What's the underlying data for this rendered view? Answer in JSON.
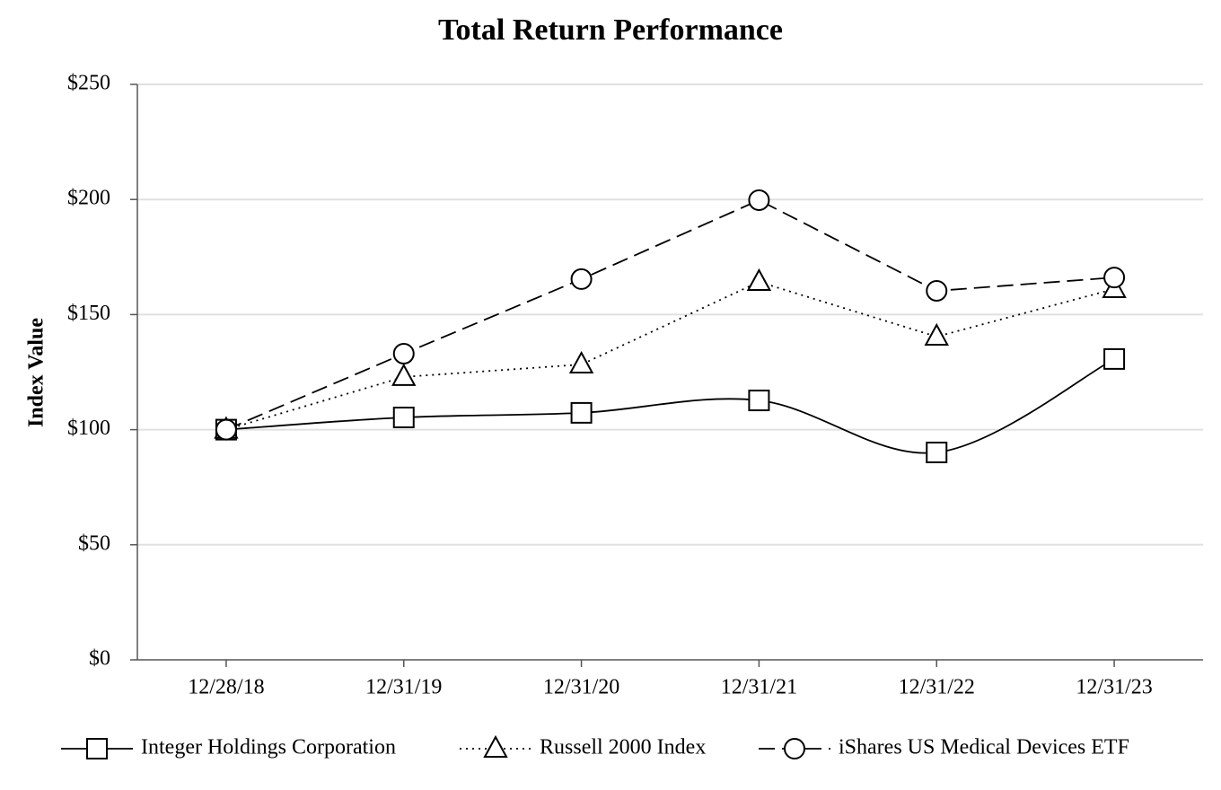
{
  "chart_data": {
    "type": "line",
    "title": "Total Return Performance",
    "y_label": "Index Value",
    "categories": [
      "12/28/18",
      "12/31/19",
      "12/31/20",
      "12/31/21",
      "12/31/22",
      "12/31/23"
    ],
    "series": [
      {
        "name": "Integer Holdings Corporation",
        "color": "#000000",
        "line_style": "solid",
        "marker": "square",
        "smooth": true,
        "values": [
          100,
          105.3,
          107.3,
          112.7,
          90.1,
          130.7
        ]
      },
      {
        "name": "Russell 2000 Index",
        "color": "#000000",
        "line_style": "dotted",
        "marker": "triangle",
        "smooth": false,
        "values": [
          100,
          122.9,
          128.3,
          164.2,
          140.4,
          161.1
        ]
      },
      {
        "name": "iShares US Medical Devices ETF",
        "color": "#000000",
        "line_style": "dashed",
        "marker": "circle",
        "smooth": false,
        "values": [
          100,
          133,
          165.4,
          199.7,
          160.3,
          166.1
        ]
      }
    ],
    "ylim": [
      0,
      250
    ],
    "yticks": [
      {
        "value": 0,
        "label": "$0"
      },
      {
        "value": 50,
        "label": "$50"
      },
      {
        "value": 100,
        "label": "$100"
      },
      {
        "value": 150,
        "label": "$150"
      },
      {
        "value": 200,
        "label": "$200"
      },
      {
        "value": 250,
        "label": "$250"
      }
    ],
    "grid": true,
    "legend": "bottom"
  }
}
